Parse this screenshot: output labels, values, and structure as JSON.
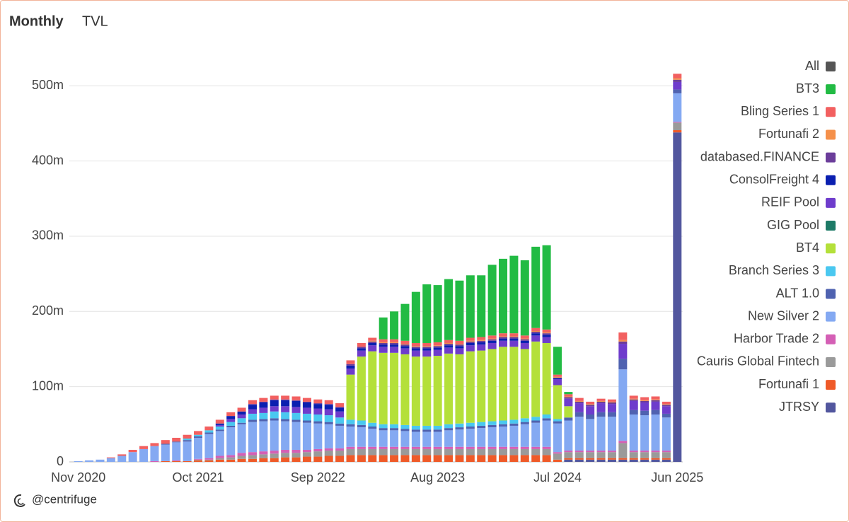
{
  "header": {
    "tabs": [
      "Monthly",
      "TVL"
    ]
  },
  "footer": {
    "handle": "@centrifuge"
  },
  "chart_data": {
    "type": "stacked_bar",
    "categories": [
      "Nov 2020",
      null,
      null,
      null,
      null,
      null,
      null,
      null,
      null,
      null,
      null,
      "Oct 2021",
      null,
      null,
      null,
      null,
      null,
      null,
      null,
      null,
      null,
      null,
      "Sep 2022",
      null,
      null,
      null,
      null,
      null,
      null,
      null,
      null,
      null,
      null,
      "Aug 2023",
      null,
      null,
      null,
      null,
      null,
      null,
      null,
      null,
      null,
      null,
      "Jul 2024",
      null,
      null,
      null,
      null,
      null,
      null,
      null,
      null,
      null,
      null,
      "Jun 2025"
    ],
    "ylim": [
      0,
      520
    ],
    "yticks": [
      0,
      {
        "value": 100,
        "label": "100m"
      },
      {
        "value": 200,
        "label": "200m"
      },
      {
        "value": 300,
        "label": "300m"
      },
      {
        "value": 400,
        "label": "400m"
      },
      {
        "value": 500,
        "label": "500m"
      }
    ],
    "grid": true,
    "legend_all": {
      "name": "All",
      "color": "#555555"
    },
    "series": [
      {
        "name": "BT3",
        "color": "#22bb44",
        "values": [
          0,
          0,
          0,
          0,
          0,
          0,
          0,
          0,
          0,
          0,
          0,
          0,
          0,
          0,
          0,
          0,
          0,
          0,
          0,
          0,
          0,
          0,
          0,
          0,
          0,
          0,
          0,
          0,
          29,
          37,
          49,
          68,
          78,
          76,
          81,
          80,
          83,
          82,
          94,
          99,
          103,
          100,
          108,
          112,
          37,
          3,
          0,
          0,
          0,
          0,
          0,
          0,
          0,
          0,
          0,
          0
        ]
      },
      {
        "name": "Bling Series 1",
        "color": "#f26060",
        "values": [
          0,
          0,
          0,
          1,
          2,
          3,
          4,
          4,
          5,
          5,
          5,
          5,
          5,
          5,
          5,
          5,
          5,
          5,
          5,
          5,
          5,
          5,
          5,
          5,
          5,
          5,
          5,
          4,
          4,
          4,
          4,
          4,
          4,
          4,
          4,
          4,
          4,
          4,
          4,
          4,
          4,
          4,
          4,
          4,
          3,
          3,
          4,
          3,
          3,
          3,
          10,
          4,
          4,
          4,
          3,
          6
        ]
      },
      {
        "name": "Fortunafi 2",
        "color": "#f5904a",
        "values": [
          0,
          0,
          0,
          0,
          0,
          0,
          0,
          0,
          0,
          0,
          0,
          0,
          0,
          0,
          0,
          0,
          0,
          0,
          0,
          0,
          0,
          0,
          0,
          0,
          0,
          0,
          0,
          1,
          1,
          1,
          1,
          1,
          1,
          1,
          1,
          1,
          1,
          1,
          1,
          1,
          1,
          1,
          1,
          1,
          1,
          1,
          1,
          1,
          1,
          1,
          2,
          1,
          1,
          1,
          1,
          2
        ]
      },
      {
        "name": "databased.FINANCE",
        "color": "#6b3d9a",
        "values": [
          0,
          0,
          0,
          0,
          0,
          0,
          0,
          0,
          0,
          0,
          0,
          0,
          0,
          0,
          0,
          0,
          1,
          1,
          1,
          1,
          1,
          1,
          1,
          1,
          1,
          2,
          2,
          2,
          2,
          2,
          2,
          2,
          2,
          2,
          2,
          2,
          2,
          2,
          2,
          2,
          2,
          2,
          2,
          2,
          1,
          2,
          2,
          2,
          2,
          2,
          3,
          2,
          2,
          2,
          2,
          3
        ]
      },
      {
        "name": "ConsolFreight 4",
        "color": "#0a1fb0",
        "values": [
          0,
          0,
          0,
          0,
          0,
          0,
          0,
          0,
          0,
          0,
          0,
          0,
          0,
          2,
          4,
          4,
          6,
          7,
          8,
          8,
          8,
          7,
          6,
          6,
          5,
          4,
          3,
          3,
          3,
          3,
          3,
          3,
          3,
          3,
          3,
          3,
          3,
          3,
          3,
          3,
          3,
          3,
          3,
          3,
          1,
          0,
          0,
          0,
          0,
          0,
          0,
          0,
          0,
          0,
          0,
          0
        ]
      },
      {
        "name": "REIF Pool",
        "color": "#6e3ccc",
        "values": [
          0,
          0,
          0,
          0,
          0,
          0,
          0,
          0,
          0,
          0,
          0,
          0,
          0,
          2,
          4,
          5,
          6,
          7,
          7,
          8,
          8,
          8,
          8,
          8,
          8,
          8,
          8,
          8,
          8,
          8,
          8,
          8,
          8,
          8,
          8,
          8,
          8,
          8,
          8,
          8,
          8,
          8,
          8,
          8,
          8,
          10,
          12,
          11,
          12,
          11,
          20,
          12,
          11,
          11,
          10,
          10
        ]
      },
      {
        "name": "GIG Pool",
        "color": "#1d7a66",
        "values": [
          0,
          0,
          0,
          0,
          0,
          0,
          0,
          0,
          0,
          0,
          0,
          0,
          0,
          0,
          0,
          0,
          0,
          0,
          0,
          0,
          0,
          0,
          0,
          0,
          0,
          0,
          0,
          0,
          0,
          0,
          0,
          0,
          0,
          0,
          0,
          0,
          0,
          0,
          0,
          0,
          0,
          0,
          0,
          0,
          0,
          0,
          0,
          0,
          0,
          0,
          0,
          0,
          0,
          0,
          0,
          0
        ]
      },
      {
        "name": "BT4",
        "color": "#b4e03a",
        "values": [
          0,
          0,
          0,
          0,
          0,
          0,
          0,
          0,
          0,
          0,
          0,
          0,
          0,
          0,
          0,
          0,
          0,
          0,
          0,
          0,
          0,
          0,
          0,
          0,
          0,
          60,
          85,
          95,
          95,
          95,
          94,
          92,
          92,
          93,
          94,
          92,
          95,
          95,
          96,
          98,
          97,
          92,
          100,
          95,
          45,
          15,
          0,
          0,
          0,
          0,
          0,
          0,
          0,
          0,
          0,
          0
        ]
      },
      {
        "name": "Branch Series 3",
        "color": "#4ac8f0",
        "values": [
          0,
          0,
          0,
          0,
          0,
          0,
          0,
          0,
          0,
          0,
          2,
          2,
          3,
          4,
          5,
          6,
          8,
          8,
          9,
          9,
          9,
          9,
          9,
          9,
          8,
          6,
          6,
          5,
          5,
          5,
          5,
          5,
          5,
          5,
          5,
          5,
          5,
          5,
          5,
          5,
          5,
          5,
          5,
          5,
          3,
          0,
          0,
          0,
          0,
          0,
          0,
          0,
          0,
          0,
          0,
          0
        ]
      },
      {
        "name": "ALT 1.0",
        "color": "#4f62b0",
        "values": [
          0,
          0,
          0,
          0,
          0,
          0,
          0,
          0,
          1,
          1,
          2,
          2,
          2,
          2,
          2,
          2,
          3,
          3,
          3,
          3,
          3,
          3,
          3,
          3,
          3,
          3,
          3,
          3,
          3,
          3,
          3,
          3,
          3,
          3,
          3,
          3,
          3,
          3,
          3,
          3,
          3,
          3,
          3,
          3,
          3,
          4,
          6,
          6,
          6,
          6,
          14,
          6,
          6,
          6,
          5,
          5
        ]
      },
      {
        "name": "New Silver 2",
        "color": "#84a9f2",
        "values": [
          1,
          2,
          3,
          5,
          8,
          13,
          17,
          20,
          22,
          24,
          26,
          28,
          32,
          33,
          37,
          38,
          40,
          40,
          40,
          38,
          37,
          36,
          34,
          32,
          30,
          27,
          26,
          24,
          22,
          22,
          21,
          20,
          20,
          20,
          22,
          23,
          24,
          25,
          26,
          27,
          28,
          30,
          32,
          35,
          38,
          40,
          45,
          42,
          45,
          45,
          95,
          48,
          47,
          48,
          44,
          38
        ]
      },
      {
        "name": "Harbor Trade 2",
        "color": "#d45fb5",
        "values": [
          0,
          0,
          0,
          0,
          0,
          0,
          0,
          1,
          0,
          1,
          0,
          1,
          2,
          3,
          3,
          4,
          4,
          4,
          4,
          4,
          4,
          3,
          3,
          3,
          3,
          3,
          3,
          3,
          3,
          3,
          3,
          3,
          3,
          3,
          3,
          3,
          3,
          3,
          3,
          3,
          3,
          3,
          3,
          3,
          2,
          2,
          2,
          2,
          2,
          2,
          3,
          2,
          2,
          2,
          2,
          1
        ]
      },
      {
        "name": "Cauris Global Fintech",
        "color": "#9a9a9a",
        "values": [
          0,
          0,
          0,
          0,
          0,
          0,
          0,
          0,
          0,
          0,
          0,
          1,
          1,
          2,
          3,
          4,
          5,
          5,
          6,
          6,
          6,
          6,
          7,
          7,
          7,
          8,
          8,
          8,
          8,
          8,
          8,
          8,
          8,
          8,
          8,
          8,
          8,
          8,
          8,
          8,
          8,
          8,
          8,
          8,
          8,
          8,
          8,
          8,
          8,
          8,
          20,
          8,
          8,
          8,
          8,
          10
        ]
      },
      {
        "name": "Fortunafi 1",
        "color": "#ef5a28",
        "values": [
          0,
          0,
          0,
          0,
          0,
          0,
          0,
          0,
          1,
          1,
          1,
          2,
          2,
          3,
          3,
          4,
          4,
          5,
          5,
          6,
          6,
          7,
          7,
          8,
          8,
          9,
          9,
          9,
          9,
          9,
          9,
          9,
          9,
          9,
          9,
          9,
          9,
          9,
          9,
          9,
          9,
          9,
          9,
          9,
          3,
          2,
          2,
          2,
          2,
          2,
          2,
          2,
          2,
          2,
          2,
          3
        ]
      },
      {
        "name": "JTRSY",
        "color": "#52569e",
        "values": [
          0,
          0,
          0,
          0,
          0,
          0,
          0,
          0,
          0,
          0,
          0,
          0,
          0,
          0,
          0,
          0,
          0,
          0,
          0,
          0,
          0,
          0,
          0,
          0,
          0,
          0,
          0,
          0,
          0,
          0,
          0,
          0,
          0,
          0,
          0,
          0,
          0,
          0,
          0,
          0,
          0,
          0,
          0,
          0,
          0,
          3,
          3,
          3,
          3,
          3,
          3,
          3,
          3,
          3,
          3,
          438
        ]
      }
    ]
  }
}
